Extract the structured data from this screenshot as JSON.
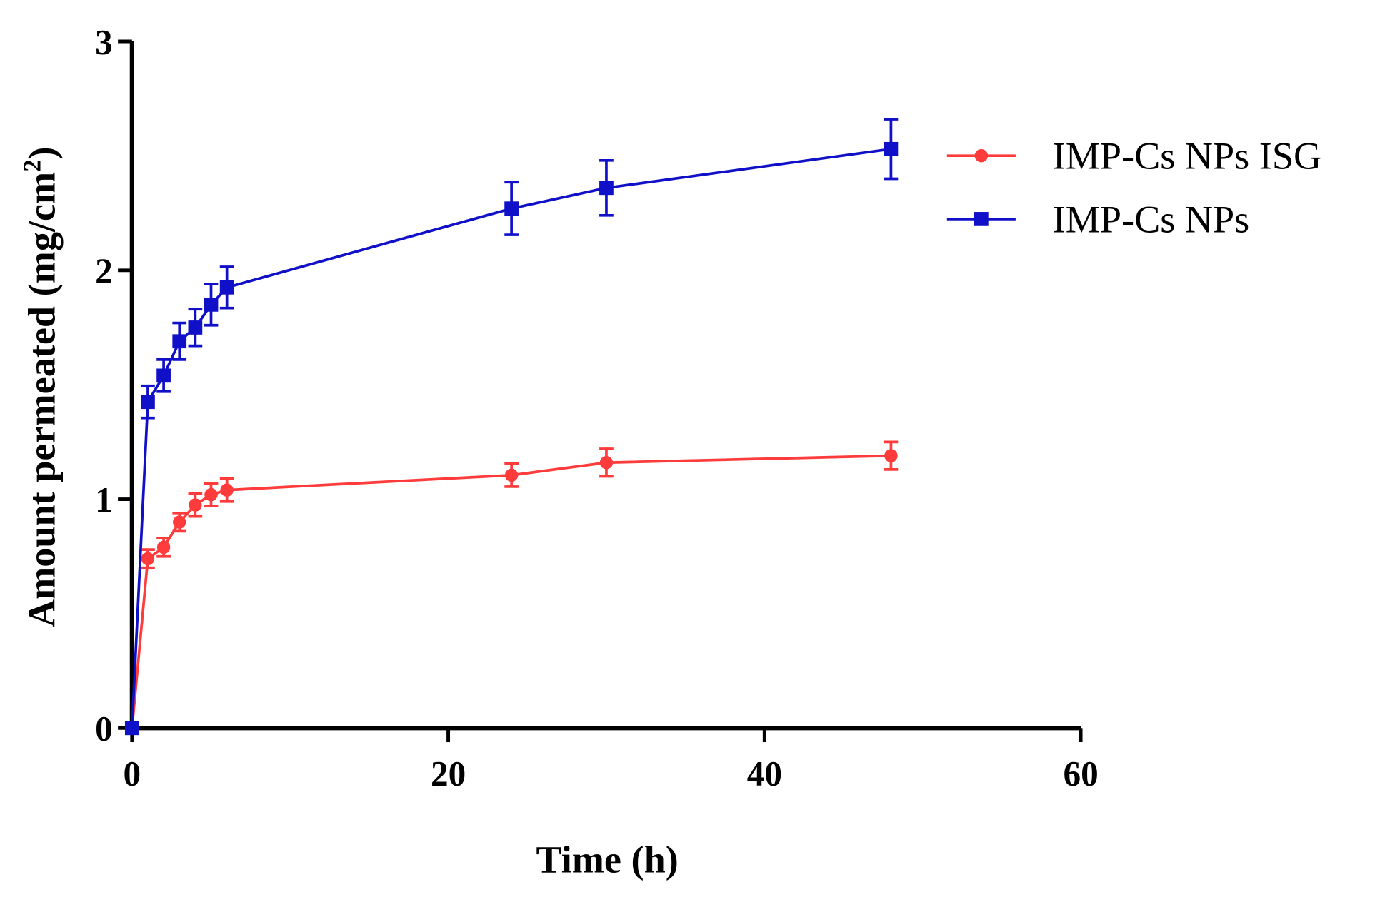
{
  "chart_data": {
    "type": "line",
    "title": "",
    "xlabel": "Time (h)",
    "ylabel_main": "Amount permeated (mg/cm",
    "ylabel_sup": "2",
    "ylabel_end": ")",
    "xlim": [
      0,
      60
    ],
    "ylim": [
      0,
      3
    ],
    "xticks": [
      0,
      20,
      40,
      60
    ],
    "yticks": [
      0,
      1,
      2,
      3
    ],
    "grid": false,
    "legend_position": "right",
    "x": [
      0,
      1,
      2,
      3,
      4,
      5,
      6,
      24,
      30,
      48
    ],
    "series": [
      {
        "name": "IMP-Cs NPs ISG",
        "color": "#ff3b3b",
        "marker": "circle",
        "values": [
          0,
          0.74,
          0.79,
          0.9,
          0.975,
          1.02,
          1.04,
          1.105,
          1.16,
          1.19
        ],
        "errors": [
          0,
          0.04,
          0.04,
          0.04,
          0.05,
          0.05,
          0.05,
          0.05,
          0.06,
          0.06
        ]
      },
      {
        "name": "IMP-Cs NPs",
        "color": "#1010c8",
        "marker": "square",
        "values": [
          0,
          1.425,
          1.54,
          1.69,
          1.75,
          1.85,
          1.925,
          2.27,
          2.36,
          2.53
        ],
        "errors": [
          0,
          0.07,
          0.07,
          0.08,
          0.08,
          0.09,
          0.09,
          0.115,
          0.12,
          0.13
        ]
      }
    ]
  }
}
